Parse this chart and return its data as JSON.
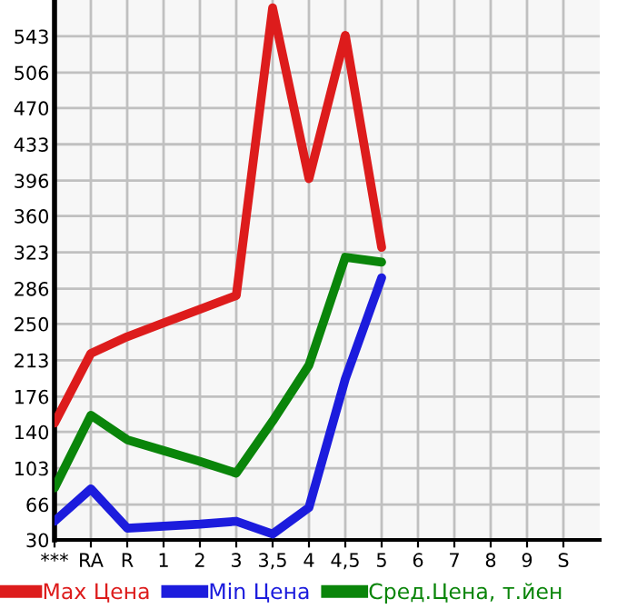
{
  "chart_data": {
    "type": "line",
    "categories": [
      "***",
      "RA",
      "R",
      "1",
      "2",
      "3",
      "3,5",
      "4",
      "4,5",
      "5",
      "6",
      "7",
      "8",
      "9",
      "S"
    ],
    "series": [
      {
        "name": "Max Цена",
        "color": "#dd1c1c",
        "values": [
          149,
          220,
          237,
          251,
          265,
          279,
          572,
          398,
          544,
          328,
          null,
          null,
          null,
          null,
          null
        ]
      },
      {
        "name": "Min Цена",
        "color": "#1c1cdd",
        "values": [
          49,
          82,
          42,
          44,
          46,
          49,
          36,
          63,
          194,
          297,
          null,
          null,
          null,
          null,
          null
        ]
      },
      {
        "name": "Сред.Цена, т.йен",
        "color": "#0a850a",
        "values": [
          83,
          157,
          132,
          121,
          110,
          98,
          151,
          208,
          318,
          313,
          null,
          null,
          null,
          null,
          null
        ]
      }
    ],
    "ylim": [
      30,
      580
    ],
    "yticks": [
      30,
      66,
      103,
      140,
      176,
      213,
      250,
      286,
      323,
      360,
      396,
      433,
      470,
      506,
      543
    ],
    "grid": true,
    "legend": "bottom",
    "marker": "none",
    "line_style": "solid"
  }
}
